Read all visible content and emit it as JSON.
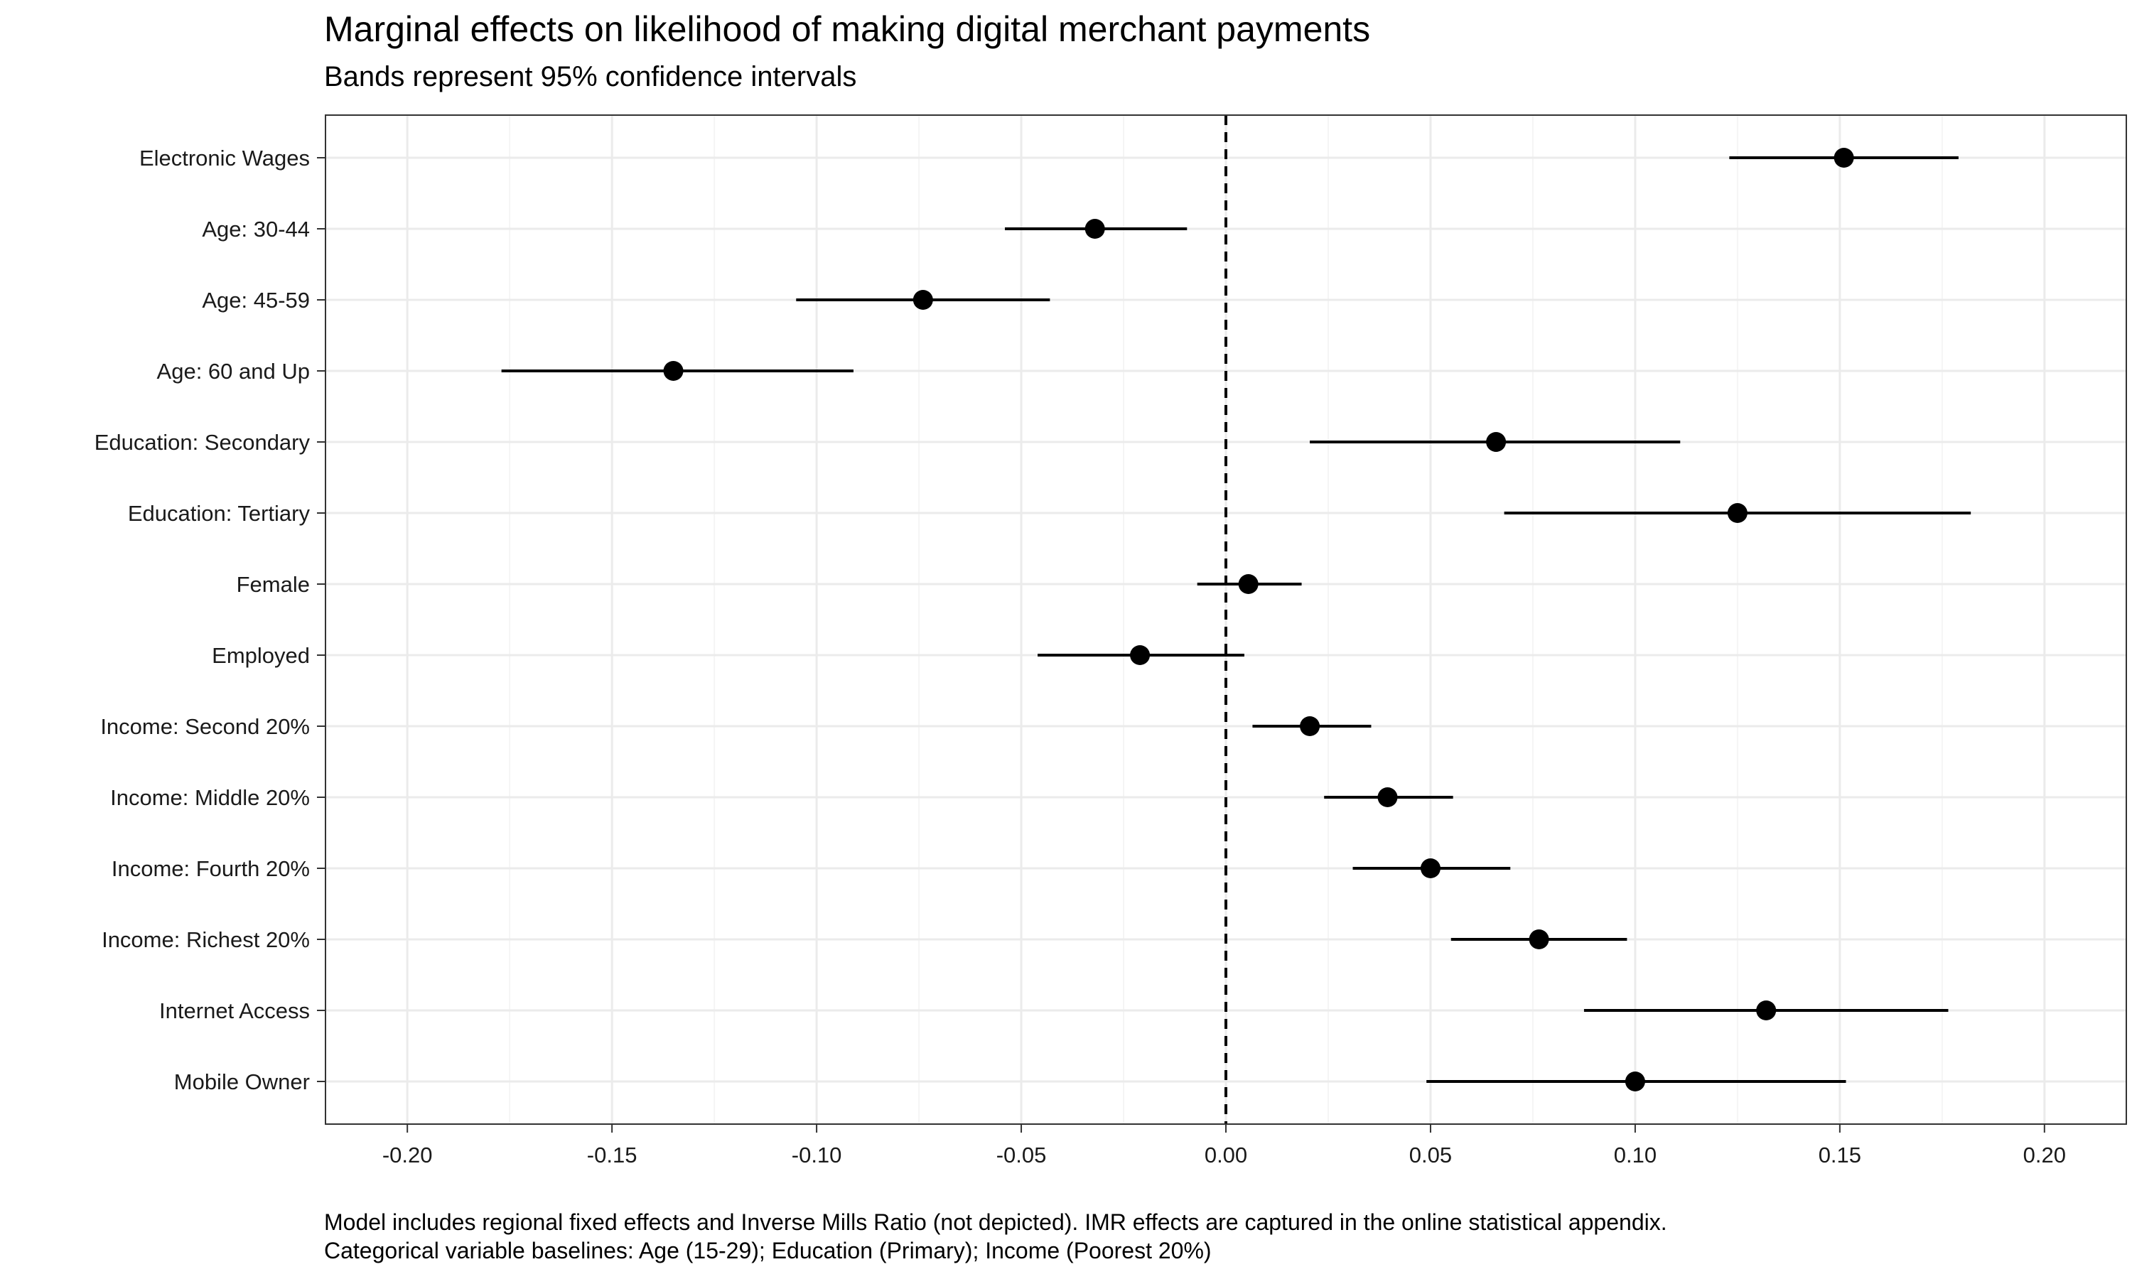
{
  "chart_data": {
    "type": "scatter",
    "title": "Marginal effects on likelihood of making digital merchant payments",
    "subtitle": "Bands represent 95% confidence intervals",
    "xlabel": "",
    "ylabel": "",
    "xlim": [
      -0.22,
      0.22
    ],
    "x_ticks": [
      "-0.20",
      "-0.15",
      "-0.10",
      "-0.05",
      "0.00",
      "0.05",
      "0.10",
      "0.15",
      "0.20"
    ],
    "reference_line": 0,
    "grid": true,
    "legend": "none",
    "categories": [
      "Electronic Wages",
      "Age: 30-44",
      "Age: 45-59",
      "Age: 60 and Up",
      "Education: Secondary",
      "Education: Tertiary",
      "Female",
      "Employed",
      "Income: Second 20%",
      "Income: Middle 20%",
      "Income: Fourth 20%",
      "Income: Richest 20%",
      "Internet Access",
      "Mobile Owner"
    ],
    "estimates": [
      0.151,
      -0.032,
      -0.074,
      -0.135,
      0.066,
      0.125,
      0.0055,
      -0.021,
      0.0205,
      0.0395,
      0.05,
      0.0765,
      0.132,
      0.1
    ],
    "ci_lower": [
      0.123,
      -0.054,
      -0.105,
      -0.177,
      0.0205,
      0.068,
      -0.007,
      -0.046,
      0.0065,
      0.024,
      0.031,
      0.055,
      0.0875,
      0.049
    ],
    "ci_upper": [
      0.179,
      -0.0095,
      -0.043,
      -0.091,
      0.111,
      0.182,
      0.0185,
      0.0045,
      0.0355,
      0.0555,
      0.0695,
      0.098,
      0.1765,
      0.1515
    ]
  },
  "caption_lines": [
    "Model includes regional fixed effects and Inverse Mills Ratio (not depicted). IMR effects are captured in the online statistical appendix.",
    "Categorical variable baselines: Age (15-29); Education (Primary); Income (Poorest 20%)"
  ],
  "colors": {
    "point": "#000000",
    "interval": "#000000",
    "grid_major": "#ebebeb",
    "grid_minor": "#f5f5f5",
    "panel_border": "#333333"
  }
}
